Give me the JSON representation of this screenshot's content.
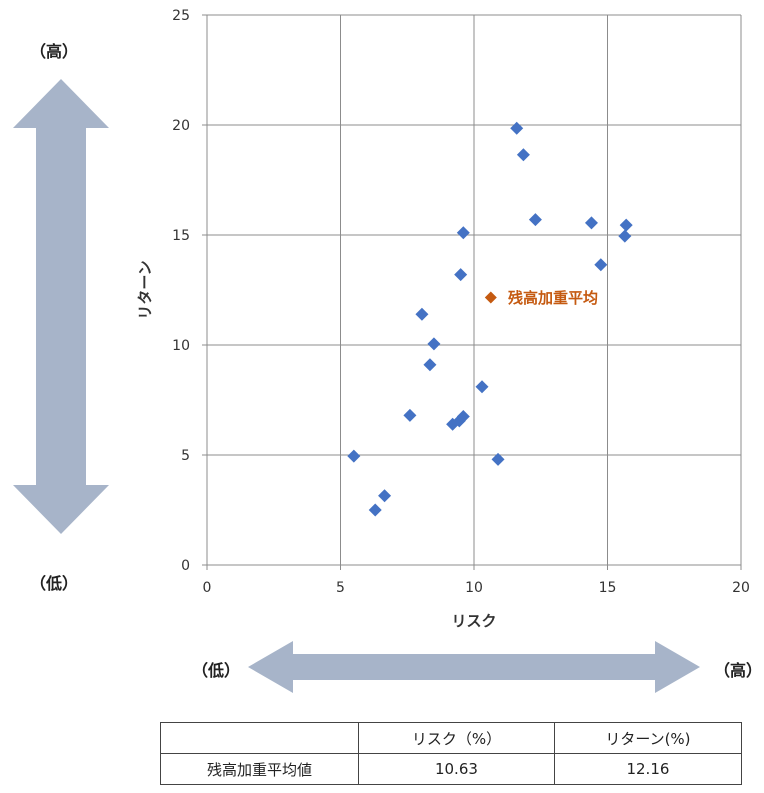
{
  "chart_data": {
    "type": "scatter",
    "xlabel": "リスク",
    "ylabel": "リターン",
    "xlim": [
      0,
      20
    ],
    "ylim": [
      0,
      25
    ],
    "xticks": [
      0,
      5,
      10,
      15,
      20
    ],
    "yticks": [
      0,
      5,
      10,
      15,
      20,
      25
    ],
    "grid": true,
    "colors": {
      "points": "#4472C4",
      "highlight": "#C55A11"
    },
    "series": [
      {
        "points": [
          [
            5.5,
            4.95
          ],
          [
            6.3,
            2.5
          ],
          [
            6.65,
            3.15
          ],
          [
            7.6,
            6.8
          ],
          [
            8.05,
            11.4
          ],
          [
            8.35,
            9.1
          ],
          [
            8.5,
            10.05
          ],
          [
            9.2,
            6.4
          ],
          [
            9.45,
            6.55
          ],
          [
            9.6,
            6.75
          ],
          [
            9.5,
            13.2
          ],
          [
            9.6,
            15.1
          ],
          [
            10.3,
            8.1
          ],
          [
            10.9,
            4.8
          ],
          [
            11.6,
            19.85
          ],
          [
            11.85,
            18.65
          ],
          [
            12.3,
            15.7
          ],
          [
            14.4,
            15.55
          ],
          [
            14.75,
            13.65
          ],
          [
            15.65,
            14.95
          ],
          [
            15.7,
            15.45
          ]
        ]
      },
      {
        "name": "残高加重平均",
        "points": [
          [
            10.63,
            12.16
          ]
        ]
      }
    ]
  },
  "labels": {
    "high_top": "（高）",
    "low_bottom": "（低）",
    "low_left": "（低）",
    "high_right": "（高）"
  },
  "table": {
    "headers": [
      "",
      "リスク（%）",
      "リターン(%)"
    ],
    "row_label": "残高加重平均値",
    "risk": "10.63",
    "return": "12.16"
  }
}
